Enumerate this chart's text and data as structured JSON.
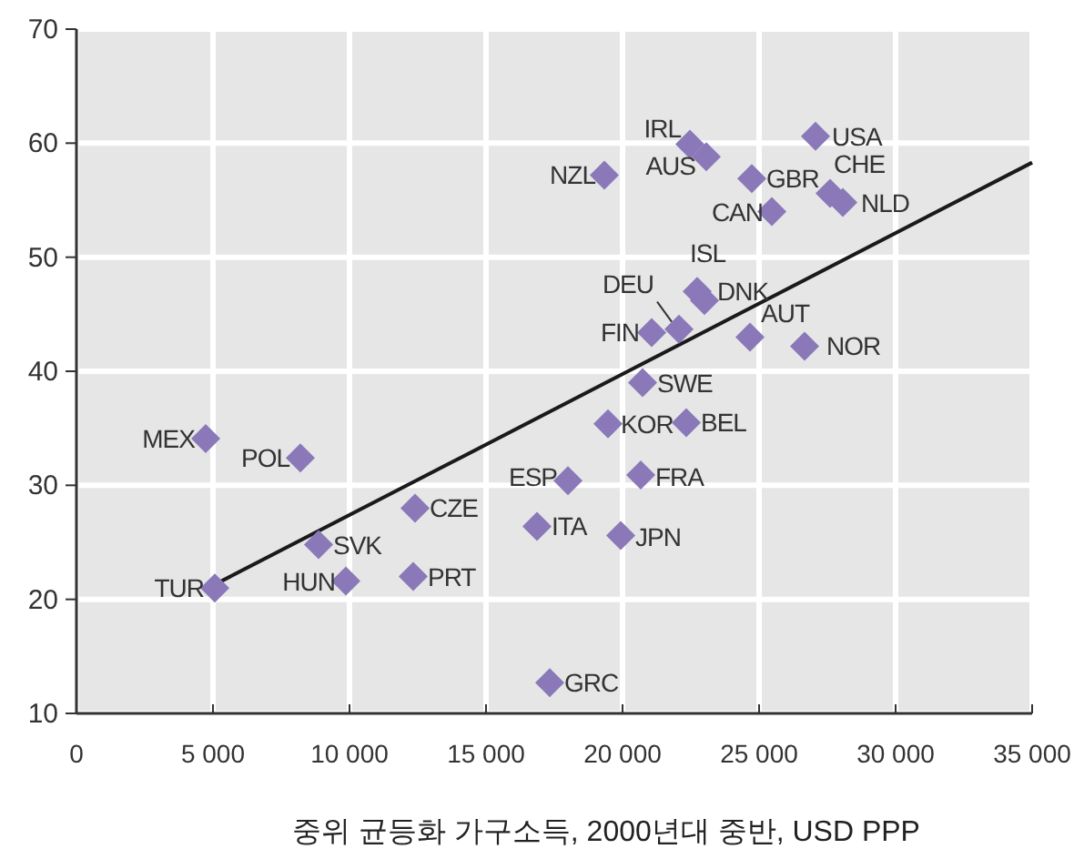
{
  "chart_data": {
    "type": "scatter",
    "xlabel": "중위 균등화 가구소득, 2000년대 중반, USD PPP",
    "xlim": [
      0,
      35000
    ],
    "ylim": [
      10,
      70
    ],
    "xticks": [
      0,
      {
        "value": 5000,
        "label": "5 000"
      },
      {
        "value": 10000,
        "label": "10 000"
      },
      {
        "value": 15000,
        "label": "15 000"
      },
      {
        "value": 20000,
        "label": "20 000"
      },
      {
        "value": 25000,
        "label": "25 000"
      },
      {
        "value": 30000,
        "label": "30 000"
      },
      {
        "value": 35000,
        "label": "35 000"
      }
    ],
    "yticks": [
      10,
      20,
      30,
      40,
      50,
      60,
      70
    ],
    "grid": true,
    "marker": "diamond",
    "color": "#8a78b8",
    "series": [
      {
        "name": "MEX",
        "x": [
          4733
        ],
        "values": [
          34.1
        ]
      },
      {
        "name": "POL",
        "x": [
          8200
        ],
        "values": [
          32.4
        ]
      },
      {
        "name": "TUR",
        "x": [
          5067
        ],
        "values": [
          21
        ]
      },
      {
        "name": "SVK",
        "x": [
          8867
        ],
        "values": [
          24.8
        ]
      },
      {
        "name": "HUN",
        "x": [
          9867
        ],
        "values": [
          21.6
        ]
      },
      {
        "name": "CZE",
        "x": [
          12400
        ],
        "values": [
          28
        ]
      },
      {
        "name": "PRT",
        "x": [
          12333
        ],
        "values": [
          22
        ]
      },
      {
        "name": "ITA",
        "x": [
          16867
        ],
        "values": [
          26.4
        ]
      },
      {
        "name": "ESP",
        "x": [
          18000
        ],
        "values": [
          30.4
        ]
      },
      {
        "name": "GRC",
        "x": [
          17333
        ],
        "values": [
          12.7
        ]
      },
      {
        "name": "JPN",
        "x": [
          19933
        ],
        "values": [
          25.6
        ]
      },
      {
        "name": "FRA",
        "x": [
          20667
        ],
        "values": [
          30.9
        ]
      },
      {
        "name": "KOR",
        "x": [
          19467
        ],
        "values": [
          35.4
        ]
      },
      {
        "name": "BEL",
        "x": [
          22333
        ],
        "values": [
          35.5
        ]
      },
      {
        "name": "SWE",
        "x": [
          20733
        ],
        "values": [
          39
        ]
      },
      {
        "name": "FIN",
        "x": [
          21067
        ],
        "values": [
          43.4
        ]
      },
      {
        "name": "DEU",
        "x": [
          22067
        ],
        "values": [
          43.7
        ]
      },
      {
        "name": "ISL",
        "x": [
          22733
        ],
        "values": [
          47
        ]
      },
      {
        "name": "DNK",
        "x": [
          23000
        ],
        "values": [
          46.2
        ]
      },
      {
        "name": "AUT",
        "x": [
          24667
        ],
        "values": [
          43
        ]
      },
      {
        "name": "NOR",
        "x": [
          26667
        ],
        "values": [
          42.2
        ]
      },
      {
        "name": "NZL",
        "x": [
          19333
        ],
        "values": [
          57.2
        ]
      },
      {
        "name": "IRL",
        "x": [
          22467
        ],
        "values": [
          59.9
        ]
      },
      {
        "name": "AUS",
        "x": [
          23067
        ],
        "values": [
          58.8
        ]
      },
      {
        "name": "GBR",
        "x": [
          24733
        ],
        "values": [
          56.9
        ]
      },
      {
        "name": "USA",
        "x": [
          27067
        ],
        "values": [
          60.6
        ]
      },
      {
        "name": "CAN",
        "x": [
          25467
        ],
        "values": [
          54
        ]
      },
      {
        "name": "CHE",
        "x": [
          27600
        ],
        "values": [
          55.6
        ]
      },
      {
        "name": "NLD",
        "x": [
          28067
        ],
        "values": [
          54.8
        ]
      },
      {
        "type": "line",
        "marker": "none",
        "color": "#1a1a1a",
        "x": [
          5067,
          35000
        ],
        "values": [
          21.3,
          58.3
        ]
      }
    ]
  }
}
